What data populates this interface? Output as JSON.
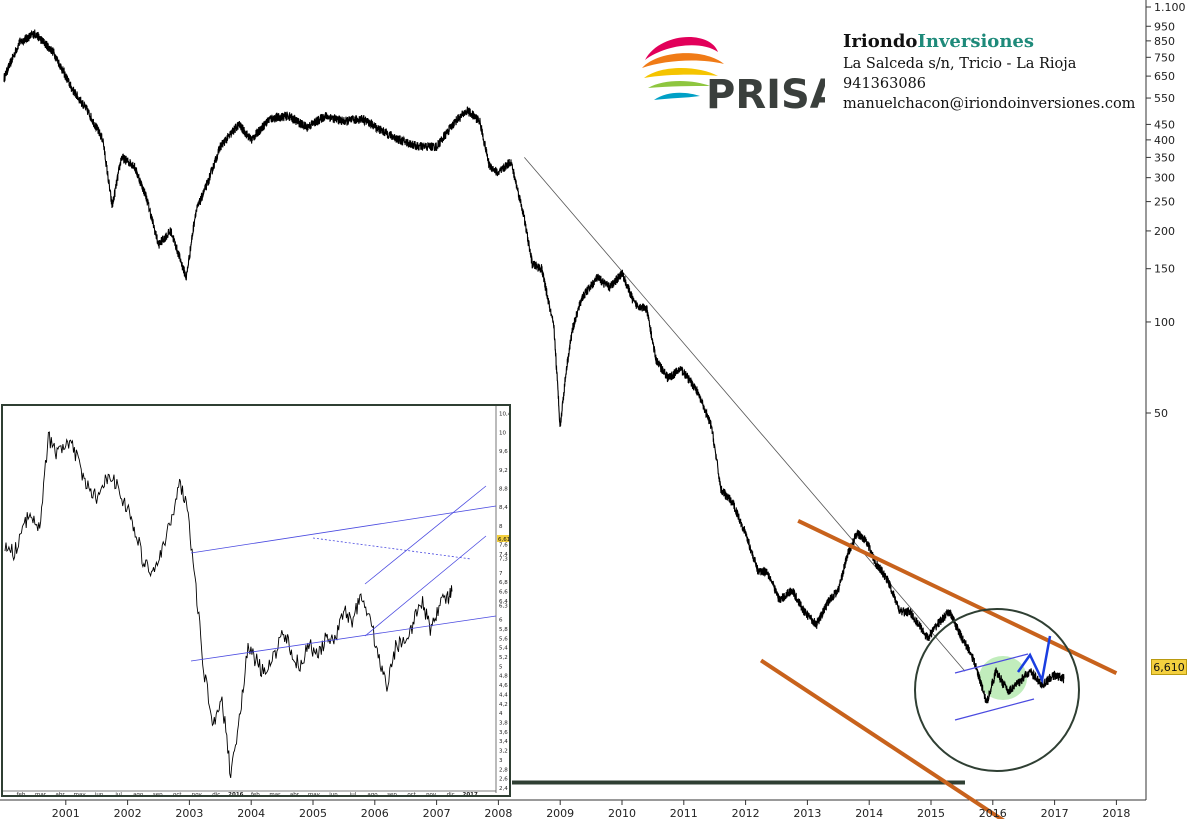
{
  "header": {
    "brand_part1": "Iriondo",
    "brand_part2": "Inversiones",
    "address": "La Salceda s/n, Tricio - La Rioja",
    "phone": "941363086",
    "email": "manuelchacon@iriondoinversiones.com",
    "logo_text": "PRISA"
  },
  "price_tag": "6,610",
  "colors": {
    "price_line": "#000000",
    "trend_channel": "#c8621c",
    "support": "#2f3f33",
    "inset_lines": "#4a4ae0",
    "projection": "#1a3ee0",
    "highlight": "#a6e6a0"
  },
  "chart_data": [
    {
      "type": "line",
      "scale": "log",
      "x_ticks": [
        "2001",
        "2002",
        "2003",
        "2004",
        "2005",
        "2006",
        "2007",
        "2008",
        "2009",
        "2010",
        "2011",
        "2012",
        "2013",
        "2014",
        "2015",
        "2016",
        "2017",
        "2018"
      ],
      "y_ticks": [
        "1.100",
        "950",
        "850",
        "750",
        "650",
        "550",
        "450",
        "400",
        "350",
        "300",
        "250",
        "200",
        "150",
        "100",
        "50"
      ],
      "y_tick_values": [
        1100,
        950,
        850,
        750,
        650,
        550,
        450,
        400,
        350,
        300,
        250,
        200,
        150,
        100,
        50
      ],
      "last_value": 6.61,
      "series": [
        {
          "x": [
            2000.0,
            2000.25,
            2000.5,
            2000.8,
            2001.1,
            2001.35,
            2001.6,
            2001.75,
            2001.9,
            2002.1,
            2002.3,
            2002.5,
            2002.7,
            2002.95,
            2003.1,
            2003.3,
            2003.5,
            2003.8,
            2004.0,
            2004.3,
            2004.6,
            2004.9,
            2005.2,
            2005.5,
            2005.8,
            2006.1,
            2006.4,
            2006.7,
            2007.0,
            2007.3,
            2007.5,
            2007.7,
            2007.85,
            2008.0,
            2008.2,
            2008.4,
            2008.55,
            2008.7,
            2008.9,
            2009.0,
            2009.1,
            2009.2,
            2009.35,
            2009.6,
            2009.8,
            2010.0,
            2010.2,
            2010.4,
            2010.55,
            2010.75,
            2010.95,
            2011.2,
            2011.45,
            2011.6,
            2011.8,
            2012.0,
            2012.2,
            2012.35,
            2012.55,
            2012.75,
            2012.95,
            2013.15,
            2013.35,
            2013.5,
            2013.65,
            2013.8,
            2013.95,
            2014.1,
            2014.3,
            2014.5,
            2014.65,
            2014.8,
            2014.95,
            2015.1,
            2015.3,
            2015.5,
            2015.65,
            2015.75,
            2015.9,
            2016.05,
            2016.25,
            2016.45,
            2016.6,
            2016.8,
            2017.0,
            2017.15
          ],
          "y": [
            640,
            840,
            900,
            780,
            590,
            500,
            400,
            240,
            350,
            330,
            260,
            180,
            200,
            140,
            230,
            290,
            380,
            450,
            400,
            470,
            480,
            440,
            480,
            460,
            470,
            430,
            400,
            380,
            380,
            460,
            500,
            460,
            330,
            310,
            340,
            230,
            155,
            150,
            95,
            45,
            70,
            95,
            120,
            140,
            130,
            145,
            115,
            110,
            75,
            65,
            70,
            60,
            45,
            28,
            25,
            20,
            15,
            15,
            12,
            13,
            11,
            10,
            12,
            13,
            17,
            20,
            19,
            16,
            14,
            11,
            11,
            10,
            9,
            10,
            11,
            9,
            8,
            7,
            5.5,
            7,
            6,
            6.5,
            7,
            6.3,
            6.8,
            6.61
          ]
        }
      ],
      "annotations": [
        "upper trend line",
        "lower trend line",
        "support 3",
        "long-term downtrend line",
        "highlight circle",
        "projection arrow"
      ]
    },
    {
      "type": "line",
      "scale": "linear",
      "x_ticks": [
        "feb",
        "mar",
        "abr",
        "may",
        "jun",
        "jul",
        "ago",
        "sep",
        "oct",
        "nov",
        "dic",
        "2016",
        "feb",
        "mar",
        "abr",
        "may",
        "jun",
        "jul",
        "ago",
        "sep",
        "oct",
        "nov",
        "dic",
        "2017"
      ],
      "y_ticks": [
        "10,4",
        "10",
        "9,6",
        "9,2",
        "8,8",
        "8,4",
        "8",
        "7,6",
        "7,4",
        "7,3",
        "7",
        "6,8",
        "6,6",
        "6,4",
        "6,3",
        "6",
        "5,8",
        "5,6",
        "5,4",
        "5,2",
        "5",
        "4,8",
        "4,6",
        "4,4",
        "4,2",
        "4",
        "3,8",
        "3,6",
        "3,4",
        "3,2",
        "3",
        "2,8",
        "2,6",
        "2,4"
      ],
      "last_value": "6,610",
      "series": [
        {
          "x": [
            0,
            0.4,
            0.8,
            1.2,
            1.6,
            2.0,
            2.4,
            2.8,
            3.2,
            3.6,
            4.0,
            4.4,
            4.8,
            5.2,
            5.6,
            6.0,
            6.4,
            6.8,
            7.2,
            7.6,
            8.0,
            8.4,
            8.8,
            9.2,
            9.6,
            10.0,
            10.4,
            10.8,
            11.2,
            11.6,
            12.0,
            12.4,
            12.8,
            13.2,
            13.6,
            14.0,
            14.4,
            14.8,
            15.2,
            15.6,
            16.0,
            16.4,
            16.8,
            17.2,
            17.6,
            18.0,
            18.4,
            18.8,
            19.2,
            19.6,
            20.0,
            20.4,
            20.6
          ],
          "y": [
            7.6,
            7.4,
            7.9,
            8.3,
            8.0,
            9.9,
            9.5,
            9.8,
            9.6,
            9.0,
            8.7,
            8.6,
            9.2,
            8.8,
            8.4,
            7.9,
            7.2,
            7.0,
            7.4,
            8.0,
            8.9,
            8.5,
            6.6,
            4.8,
            3.8,
            4.3,
            2.7,
            3.9,
            5.4,
            5.1,
            4.8,
            5.2,
            5.8,
            5.3,
            5.0,
            5.5,
            5.2,
            5.6,
            5.5,
            6.2,
            6.0,
            6.5,
            6.1,
            5.2,
            4.6,
            5.4,
            5.6,
            5.9,
            6.4,
            5.8,
            6.3,
            6.5,
            6.6
          ]
        }
      ]
    }
  ]
}
